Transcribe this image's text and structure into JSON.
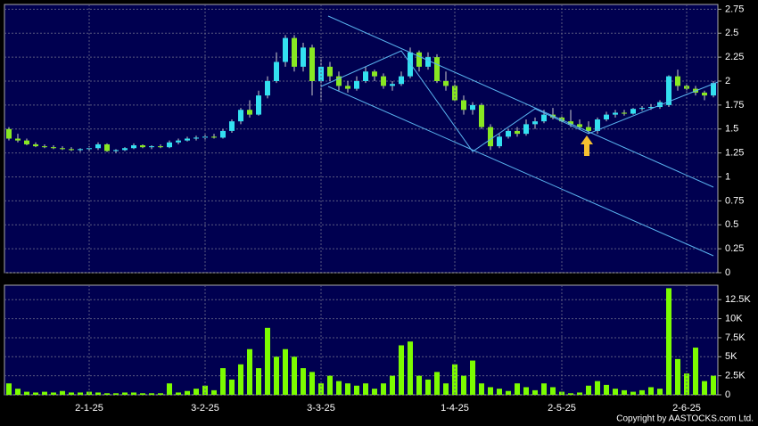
{
  "chart_data": [
    {
      "type": "candlestick",
      "up_color": "#33e0f0",
      "down_color": "#88e822",
      "open": [
        1.5,
        1.4,
        1.38,
        1.34,
        1.32,
        1.31,
        1.3,
        1.29,
        1.28,
        1.29,
        1.3,
        1.34,
        1.27,
        1.28,
        1.3,
        1.33,
        1.31,
        1.32,
        1.31,
        1.36,
        1.38,
        1.4,
        1.41,
        1.42,
        1.41,
        1.48,
        1.58,
        1.7,
        1.65,
        1.85,
        2.0,
        2.2,
        2.45,
        2.15,
        2.35,
        2.0,
        2.15,
        2.05,
        1.95,
        1.92,
        2.0,
        2.1,
        2.05,
        1.95,
        1.97,
        2.05,
        2.3,
        2.15,
        2.25,
        2.0,
        1.95,
        1.8,
        1.7,
        1.75,
        1.52,
        1.32,
        1.42,
        1.48,
        1.45,
        1.55,
        1.58,
        1.65,
        1.62,
        1.58,
        1.55,
        1.52,
        1.48,
        1.6,
        1.65,
        1.67,
        1.66,
        1.71,
        1.72,
        1.73,
        1.75,
        2.05,
        1.95,
        1.92,
        1.88,
        1.85
      ],
      "high": [
        1.52,
        1.45,
        1.4,
        1.36,
        1.34,
        1.33,
        1.32,
        1.31,
        1.3,
        1.32,
        1.36,
        1.35,
        1.29,
        1.31,
        1.35,
        1.34,
        1.33,
        1.34,
        1.38,
        1.4,
        1.42,
        1.43,
        1.44,
        1.45,
        1.5,
        1.6,
        1.72,
        1.8,
        1.9,
        2.05,
        2.3,
        2.48,
        2.48,
        2.4,
        2.38,
        2.25,
        2.2,
        2.1,
        2.0,
        2.05,
        2.15,
        2.12,
        2.08,
        2.0,
        2.1,
        2.35,
        2.32,
        2.3,
        2.28,
        2.1,
        2.0,
        1.85,
        1.78,
        1.77,
        1.55,
        1.45,
        1.5,
        1.52,
        1.6,
        1.62,
        1.7,
        1.72,
        1.65,
        1.7,
        1.6,
        1.58,
        1.62,
        1.68,
        1.7,
        1.7,
        1.72,
        1.74,
        1.76,
        1.8,
        2.06,
        2.12,
        1.98,
        1.95,
        1.9,
        2.0
      ],
      "low": [
        1.38,
        1.36,
        1.33,
        1.31,
        1.3,
        1.29,
        1.28,
        1.27,
        1.26,
        1.27,
        1.28,
        1.26,
        1.25,
        1.27,
        1.29,
        1.3,
        1.29,
        1.3,
        1.3,
        1.34,
        1.37,
        1.38,
        1.39,
        1.4,
        1.4,
        1.46,
        1.55,
        1.62,
        1.64,
        1.82,
        1.98,
        2.15,
        2.1,
        2.1,
        1.85,
        1.8,
        2.0,
        1.9,
        1.88,
        1.9,
        1.98,
        2.0,
        1.92,
        1.9,
        1.95,
        2.03,
        2.1,
        2.12,
        1.98,
        1.9,
        1.78,
        1.65,
        1.65,
        1.5,
        1.28,
        1.3,
        1.4,
        1.42,
        1.43,
        1.5,
        1.56,
        1.6,
        1.55,
        1.52,
        1.5,
        1.45,
        1.45,
        1.58,
        1.62,
        1.64,
        1.65,
        1.69,
        1.7,
        1.71,
        1.73,
        1.9,
        1.88,
        1.85,
        1.8,
        1.83
      ],
      "close": [
        1.4,
        1.38,
        1.34,
        1.32,
        1.31,
        1.3,
        1.29,
        1.28,
        1.29,
        1.3,
        1.34,
        1.27,
        1.28,
        1.3,
        1.33,
        1.31,
        1.32,
        1.31,
        1.36,
        1.38,
        1.4,
        1.41,
        1.42,
        1.41,
        1.48,
        1.58,
        1.7,
        1.65,
        1.85,
        2.0,
        2.2,
        2.45,
        2.15,
        2.35,
        2.0,
        2.15,
        2.05,
        1.95,
        1.92,
        2.0,
        2.1,
        2.05,
        1.95,
        1.97,
        2.05,
        2.3,
        2.15,
        2.25,
        2.0,
        1.95,
        1.8,
        1.7,
        1.75,
        1.52,
        1.32,
        1.42,
        1.48,
        1.45,
        1.55,
        1.58,
        1.65,
        1.62,
        1.58,
        1.55,
        1.52,
        1.48,
        1.6,
        1.65,
        1.67,
        1.66,
        1.71,
        1.72,
        1.73,
        1.78,
        2.05,
        1.95,
        1.92,
        1.88,
        1.85,
        1.98
      ],
      "ylim": [
        0,
        2.8
      ],
      "yticks": [
        0,
        0.25,
        0.5,
        0.75,
        1,
        1.25,
        1.5,
        1.75,
        2,
        2.25,
        2.5,
        2.75
      ],
      "grid": true
    },
    {
      "type": "bar",
      "color": "#7cfc00",
      "categories": [
        null,
        null,
        null,
        null,
        null,
        null,
        null,
        null,
        null,
        "2-1-25",
        null,
        null,
        null,
        null,
        null,
        null,
        null,
        null,
        null,
        null,
        null,
        null,
        "3-2-25",
        null,
        null,
        null,
        null,
        null,
        null,
        null,
        null,
        null,
        null,
        null,
        null,
        "3-3-25",
        null,
        null,
        null,
        null,
        null,
        null,
        null,
        null,
        null,
        null,
        null,
        null,
        null,
        null,
        "1-4-25",
        null,
        null,
        null,
        null,
        null,
        null,
        null,
        null,
        null,
        null,
        null,
        "2-5-25",
        null,
        null,
        null,
        null,
        null,
        null,
        null,
        null,
        null,
        null,
        null,
        null,
        null,
        "2-6-25",
        null,
        null,
        null
      ],
      "values": [
        1500,
        800,
        400,
        300,
        400,
        300,
        500,
        300,
        300,
        400,
        300,
        200,
        200,
        300,
        300,
        200,
        200,
        200,
        1500,
        300,
        500,
        800,
        1200,
        600,
        3500,
        2000,
        4000,
        6000,
        3500,
        8800,
        5000,
        6000,
        5000,
        3500,
        3000,
        1500,
        2500,
        1800,
        1500,
        1200,
        1500,
        800,
        1500,
        2500,
        6500,
        7000,
        2500,
        2000,
        3000,
        1500,
        4000,
        2500,
        4500,
        1500,
        1000,
        800,
        500,
        1500,
        1000,
        600,
        1500,
        1000,
        400,
        200,
        300,
        1200,
        1800,
        1300,
        800,
        600,
        400,
        600,
        1000,
        800,
        14000,
        4700,
        2800,
        6200,
        1800,
        2500
      ],
      "ylim": [
        0,
        14400
      ],
      "yticks": [
        0,
        {
          "value": 2500,
          "label": "2.5K"
        },
        {
          "value": 5000,
          "label": "5K"
        },
        {
          "value": 7500,
          "label": "7.5K"
        },
        {
          "value": 10000,
          "label": "10K"
        },
        {
          "value": 12500,
          "label": "12.5K"
        }
      ],
      "grid": true
    }
  ],
  "copyright": "Copyright by AASTOCKS.com Ltd."
}
